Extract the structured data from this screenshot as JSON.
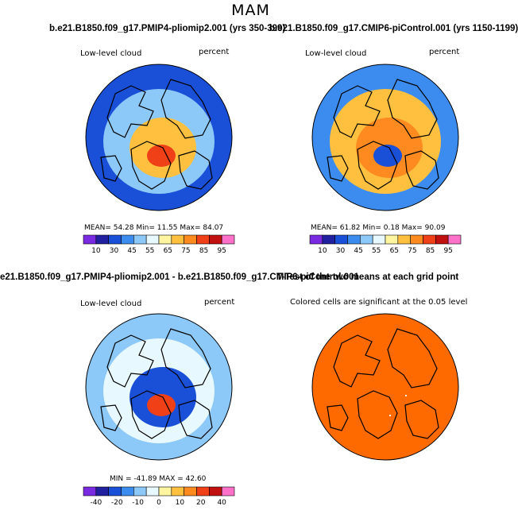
{
  "page": {
    "title": "MAM"
  },
  "captions": {
    "top_left": "b.e21.B1850.f09_g17.PMIP4-pliomip2.001 (yrs 350-399)",
    "top_right": "b.e21.B1850.f09_g17.CMIP6-piControl.001 (yrs 1150-1199)",
    "bottom_left": "e21.B1850.f09_g17.PMIP4-pliomip2.001 - b.e21.B1850.f09_g17.CMIP6-piControl.001",
    "bottom_right": "T-Test of the two means at each grid point"
  },
  "panels": {
    "top_left": {
      "left_label": "Low-level cloud",
      "right_label": "percent",
      "stats": "MEAN=   54.28   Min=   11.55   Max=   84.07"
    },
    "top_right": {
      "left_label": "Low-level cloud",
      "right_label": "percent",
      "stats": "MEAN=   61.82   Min=    0.18   Max=   90.09"
    },
    "bottom_left": {
      "left_label": "Low-level cloud",
      "right_label": "percent",
      "stats": "MIN = -41.89  MAX =  42.60"
    },
    "bottom_right": {
      "left_label": "Colored cells are significant at the 0.05 level"
    }
  },
  "colorbars": {
    "absolute": {
      "colors": [
        "#7a2be2",
        "#2020a0",
        "#1a4fd8",
        "#3c8cf0",
        "#8cc8f8",
        "#e8f8ff",
        "#fff4a0",
        "#ffc040",
        "#ff8a20",
        "#f04018",
        "#c01010",
        "#ff70c8"
      ],
      "tick_labels": [
        "10",
        "30",
        "45",
        "55",
        "65",
        "75",
        "85",
        "95"
      ]
    },
    "difference": {
      "colors": [
        "#7a2be2",
        "#2020a0",
        "#1a4fd8",
        "#3c8cf0",
        "#8cc8f8",
        "#e8f8ff",
        "#fff4a0",
        "#ffc040",
        "#ff8a20",
        "#f04018",
        "#c01010",
        "#ff70c8"
      ],
      "tick_labels": [
        "-40",
        "-20",
        "-10",
        "0",
        "10",
        "20",
        "40"
      ]
    }
  },
  "map_colors": {
    "top_left": {
      "outer": "#1a4fd8",
      "mid": "#8cc8f8",
      "inner": "#ffc040",
      "core": "#f04018"
    },
    "top_right": {
      "outer": "#3c8cf0",
      "mid": "#ffc040",
      "inner": "#ff8a20",
      "core": "#1a4fd8"
    },
    "bottom_left": {
      "outer": "#8cc8f8",
      "mid": "#e8f8ff",
      "inner": "#1a4fd8",
      "core": "#f04018"
    },
    "bottom_right": {
      "fill": "#ff6a00"
    }
  }
}
